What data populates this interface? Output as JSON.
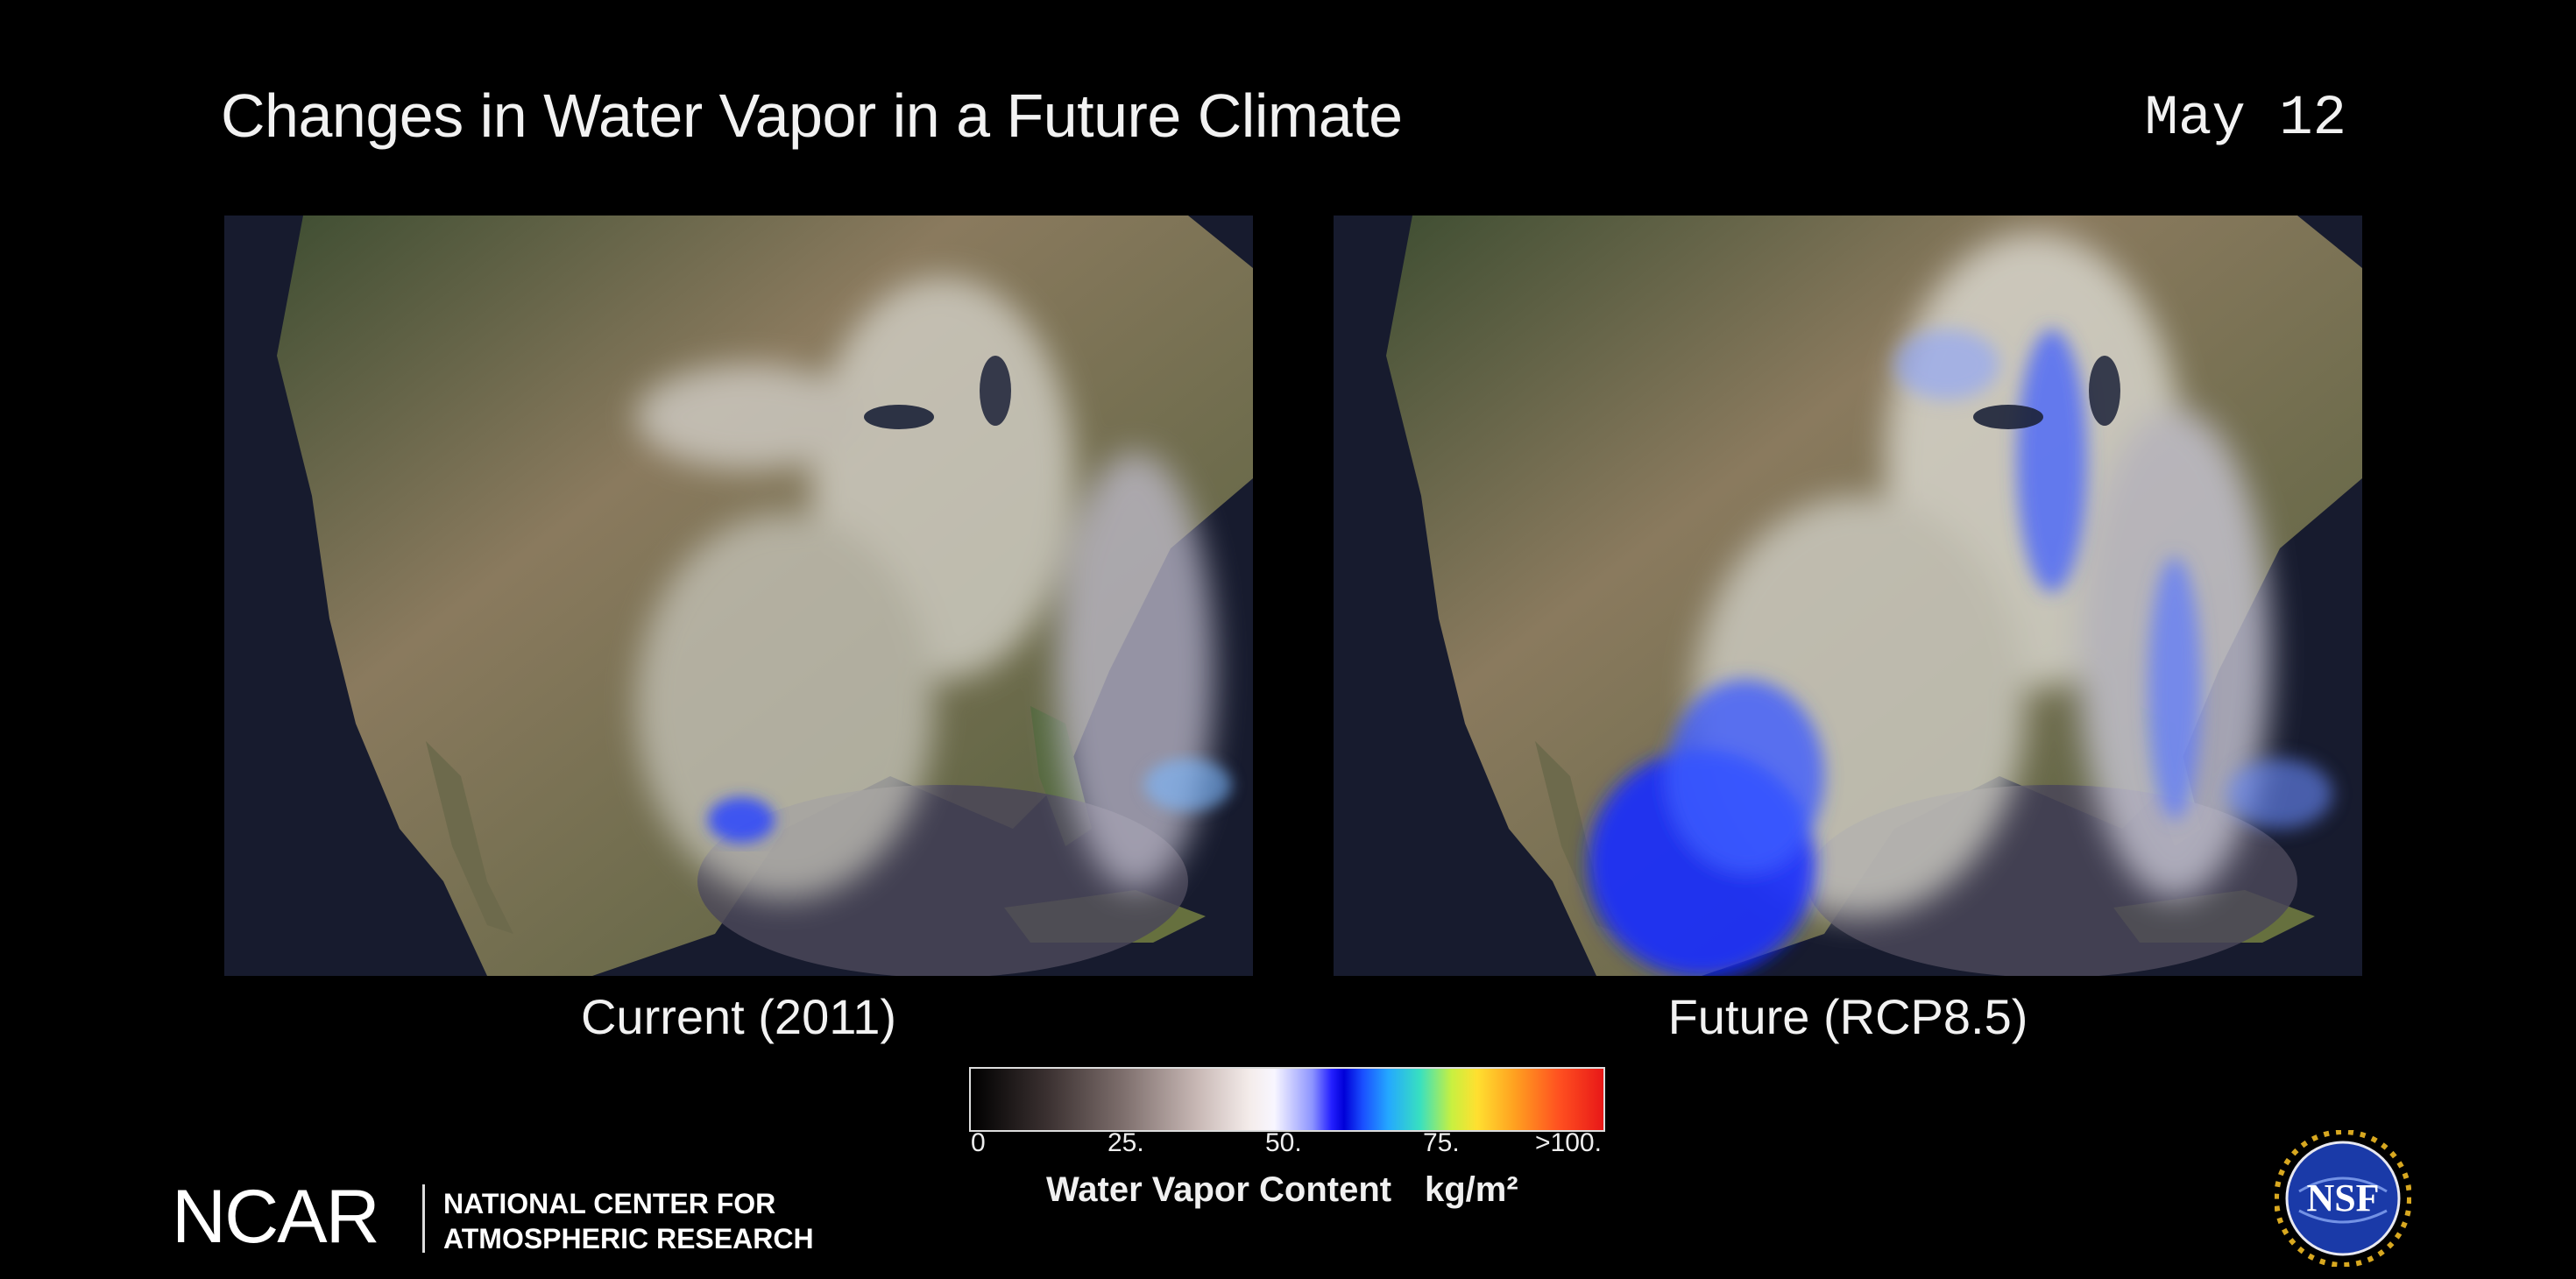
{
  "header": {
    "title": "Changes in Water Vapor in a Future Climate",
    "date": "May 12"
  },
  "panels": [
    {
      "id": "current",
      "caption": "Current (2011)"
    },
    {
      "id": "future",
      "caption": "Future (RCP8.5)"
    }
  ],
  "colorbar": {
    "ticks": [
      "0",
      "25.",
      "50.",
      "75.",
      ">100."
    ],
    "label": "Water Vapor Content",
    "unit": "kg/m²"
  },
  "branding": {
    "ncar_logo": "NCAR",
    "ncar_name_line1": "NATIONAL CENTER FOR",
    "ncar_name_line2": "ATMOSPHERIC RESEARCH",
    "nsf_logo": "NSF"
  },
  "colors": {
    "background": "#000000",
    "ocean": "#1a1f33",
    "land_green": "#4a5a3a",
    "land_tan": "#8c7d62",
    "vapor_white": "#e8e4e0",
    "vapor_blue": "#2030ff",
    "nsf_blue": "#1a3aa8",
    "nsf_gold": "#d8a820"
  },
  "icons": [
    "nsf-seal-icon"
  ]
}
